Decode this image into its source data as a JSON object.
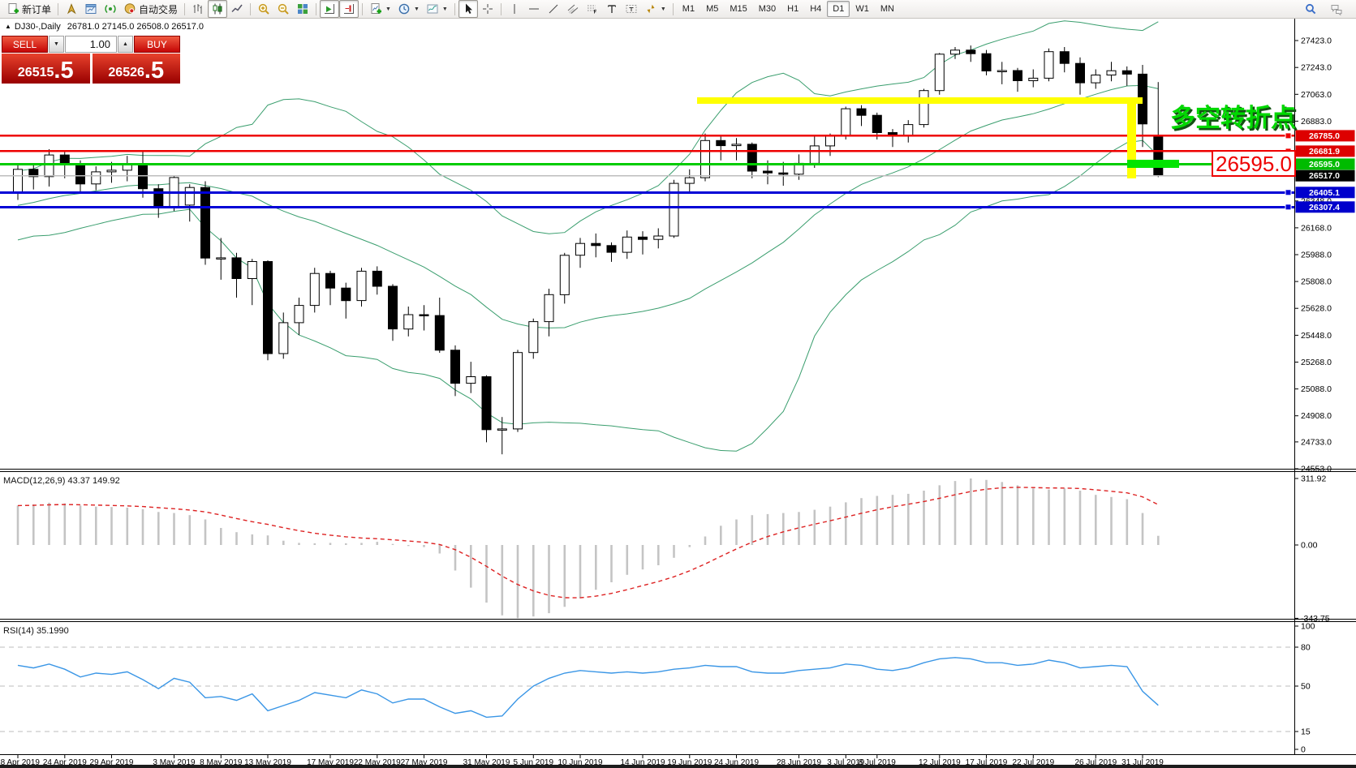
{
  "toolbar": {
    "groups": [
      [
        {
          "icon": "new-order-icon",
          "label": "新订单"
        }
      ],
      [
        {
          "icon": "gold-cursor-icon"
        },
        {
          "icon": "new-chart-icon"
        },
        {
          "icon": "signal-icon"
        },
        {
          "icon": "auto-trading-icon",
          "label": "自动交易"
        }
      ],
      [
        {
          "icon": "bar-chart-icon"
        },
        {
          "icon": "candle-chart-icon",
          "pressed": true
        },
        {
          "icon": "line-chart-icon"
        }
      ],
      [
        {
          "icon": "zoom-in-icon"
        },
        {
          "icon": "zoom-out-icon"
        },
        {
          "icon": "tile-windows-icon"
        }
      ],
      [
        {
          "icon": "auto-scroll-icon",
          "pressed": true
        },
        {
          "icon": "chart-shift-icon",
          "pressed": true
        }
      ],
      [
        {
          "icon": "indicators-icon",
          "caret": true
        },
        {
          "icon": "periods-icon",
          "caret": true
        },
        {
          "icon": "templates-icon",
          "caret": true
        }
      ],
      [
        {
          "icon": "cursor-icon",
          "pressed": true
        },
        {
          "icon": "crosshair-icon"
        }
      ],
      [
        {
          "icon": "vline-icon"
        },
        {
          "icon": "hline-icon"
        },
        {
          "icon": "trendline-icon"
        },
        {
          "icon": "channel-icon"
        },
        {
          "icon": "fibo-icon"
        },
        {
          "icon": "text-icon"
        },
        {
          "icon": "label-icon"
        },
        {
          "icon": "arrows-icon",
          "caret": true
        }
      ]
    ],
    "timeframes": [
      "M1",
      "M5",
      "M15",
      "M30",
      "H1",
      "H4",
      "D1",
      "W1",
      "MN"
    ],
    "active_timeframe": "D1",
    "right_icons": [
      "search-icon",
      "chat-icon"
    ]
  },
  "chart_header": {
    "symbol_marker": "▲",
    "symbol_title": "DJ30-,Daily",
    "ohlc_text": "26781.0 27145.0 26508.0 26517.0"
  },
  "trade_panel": {
    "sell_label": "SELL",
    "buy_label": "BUY",
    "volume_value": "1.00",
    "spin_down": "▼",
    "spin_up": "▲",
    "sell_price_int": "26515",
    "sell_price_frac": ".5",
    "buy_price_int": "26526",
    "buy_price_frac": ".5"
  },
  "price_lines": [
    {
      "price": 26785.0,
      "label": "26785.0",
      "color": "#ee0000",
      "width": 2.4,
      "badge": "#dd0000"
    },
    {
      "price": 26681.9,
      "label": "26681.9",
      "color": "#ee0000",
      "width": 2.4,
      "badge": "#dd0000"
    },
    {
      "price": 26595.0,
      "label": "26595.0",
      "color": "#00cc00",
      "width": 3,
      "badge": "#00bb00"
    },
    {
      "price": 26517.0,
      "label": "26517.0",
      "color": "#bdbdbd",
      "width": 1.4,
      "badge": "#000000"
    },
    {
      "price": 26405.1,
      "label": "26405.1",
      "color": "#0000d6",
      "width": 3,
      "badge": "#0000cc"
    },
    {
      "price": 26307.4,
      "label": "26307.4",
      "color": "#0000d6",
      "width": 3,
      "badge": "#0000cc"
    }
  ],
  "annotations": {
    "pivot_text": "多空转折点",
    "pivot_color": "#00d800",
    "pivot_shadow": "#145214",
    "price_box_text": "26595.0",
    "price_box_color": "#ee0000",
    "yellow_color": "#ffff00",
    "yellow_line": {
      "price": 27021,
      "from_index": 43.5,
      "to_index": 72
    },
    "yellow_drop": {
      "index": 71.3,
      "from_price": 27021,
      "to_price": 26497
    },
    "green_bar": {
      "price": 26595,
      "from_index": 71,
      "to_index": 74.3,
      "color": "#00e400"
    }
  },
  "chart_data": {
    "type": "candlestick",
    "symbol": "DJ30-",
    "period": "Daily",
    "last_bar": {
      "open": 26781.0,
      "high": 27145.0,
      "low": 26508.0,
      "close": 26517.0
    },
    "y_ticks": [
      27423.0,
      27243.0,
      27063.0,
      26883.0,
      26348.0,
      26168.0,
      25988.0,
      25808.0,
      25628.0,
      25448.0,
      25268.0,
      25088.0,
      24908.0,
      24733.0,
      24553.0
    ],
    "x_labels": [
      {
        "i": 0,
        "t": "18 Apr 2019"
      },
      {
        "i": 3,
        "t": "24 Apr 2019"
      },
      {
        "i": 6,
        "t": "29 Apr 2019"
      },
      {
        "i": 10,
        "t": "3 May 2019"
      },
      {
        "i": 13,
        "t": "8 May 2019"
      },
      {
        "i": 16,
        "t": "13 May 2019"
      },
      {
        "i": 20,
        "t": "17 May 2019"
      },
      {
        "i": 23,
        "t": "22 May 2019"
      },
      {
        "i": 26,
        "t": "27 May 2019"
      },
      {
        "i": 30,
        "t": "31 May 2019"
      },
      {
        "i": 33,
        "t": "5 Jun 2019"
      },
      {
        "i": 36,
        "t": "10 Jun 2019"
      },
      {
        "i": 40,
        "t": "14 Jun 2019"
      },
      {
        "i": 43,
        "t": "19 Jun 2019"
      },
      {
        "i": 46,
        "t": "24 Jun 2019"
      },
      {
        "i": 50,
        "t": "28 Jun 2019"
      },
      {
        "i": 53,
        "t": "3 Jul 2019"
      },
      {
        "i": 55,
        "t": "8 Jul 2019"
      },
      {
        "i": 59,
        "t": "12 Jul 2019"
      },
      {
        "i": 62,
        "t": "17 Jul 2019"
      },
      {
        "i": 65,
        "t": "22 Jul 2019"
      },
      {
        "i": 69,
        "t": "26 Jul 2019"
      },
      {
        "i": 72,
        "t": "31 Jul 2019"
      }
    ],
    "candles": [
      [
        26400,
        26602,
        26355,
        26560
      ],
      [
        26560,
        26595,
        26425,
        26511
      ],
      [
        26511,
        26695,
        26445,
        26656
      ],
      [
        26656,
        26680,
        26500,
        26597
      ],
      [
        26597,
        26620,
        26400,
        26462
      ],
      [
        26462,
        26580,
        26420,
        26543
      ],
      [
        26543,
        26610,
        26470,
        26554
      ],
      [
        26554,
        26650,
        26480,
        26593
      ],
      [
        26593,
        26689,
        26370,
        26430
      ],
      [
        26430,
        26460,
        26235,
        26308
      ],
      [
        26308,
        26520,
        26280,
        26505
      ],
      [
        26320,
        26460,
        26210,
        26438
      ],
      [
        26438,
        26480,
        25920,
        25965
      ],
      [
        25965,
        26100,
        25820,
        25967
      ],
      [
        25967,
        26000,
        25700,
        25828
      ],
      [
        25828,
        25960,
        25650,
        25942
      ],
      [
        25942,
        25950,
        25280,
        25325
      ],
      [
        25325,
        25600,
        25290,
        25532
      ],
      [
        25532,
        25700,
        25450,
        25648
      ],
      [
        25648,
        25900,
        25600,
        25862
      ],
      [
        25862,
        25880,
        25650,
        25764
      ],
      [
        25764,
        25800,
        25560,
        25680
      ],
      [
        25680,
        25900,
        25640,
        25877
      ],
      [
        25877,
        25910,
        25720,
        25776
      ],
      [
        25776,
        25790,
        25410,
        25490
      ],
      [
        25490,
        25640,
        25440,
        25586
      ],
      [
        25586,
        25650,
        25480,
        25580
      ],
      [
        25580,
        25700,
        25330,
        25348
      ],
      [
        25348,
        25380,
        25040,
        25126
      ],
      [
        25126,
        25270,
        25060,
        25170
      ],
      [
        25170,
        25180,
        24730,
        24815
      ],
      [
        24815,
        24900,
        24650,
        24820
      ],
      [
        24820,
        25350,
        24800,
        25332
      ],
      [
        25332,
        25560,
        25290,
        25539
      ],
      [
        25539,
        25760,
        25440,
        25720
      ],
      [
        25720,
        26000,
        25660,
        25984
      ],
      [
        25984,
        26100,
        25900,
        26063
      ],
      [
        26063,
        26130,
        25970,
        26049
      ],
      [
        26049,
        26070,
        25940,
        26004
      ],
      [
        26004,
        26150,
        25960,
        26106
      ],
      [
        26106,
        26145,
        25990,
        26090
      ],
      [
        26090,
        26165,
        26030,
        26113
      ],
      [
        26113,
        26490,
        26100,
        26466
      ],
      [
        26466,
        26560,
        26400,
        26504
      ],
      [
        26504,
        26800,
        26480,
        26753
      ],
      [
        26753,
        26790,
        26620,
        26719
      ],
      [
        26719,
        26770,
        26620,
        26728
      ],
      [
        26728,
        26740,
        26500,
        26548
      ],
      [
        26548,
        26620,
        26460,
        26536
      ],
      [
        26536,
        26610,
        26450,
        26527
      ],
      [
        26527,
        26660,
        26490,
        26600
      ],
      [
        26600,
        26780,
        26570,
        26717
      ],
      [
        26717,
        26800,
        26650,
        26786
      ],
      [
        26786,
        26980,
        26760,
        26966
      ],
      [
        26966,
        26990,
        26850,
        26922
      ],
      [
        26922,
        26940,
        26760,
        26806
      ],
      [
        26806,
        26830,
        26710,
        26783
      ],
      [
        26783,
        26890,
        26740,
        26860
      ],
      [
        26860,
        27100,
        26840,
        27088
      ],
      [
        27088,
        27340,
        27060,
        27332
      ],
      [
        27332,
        27380,
        27300,
        27359
      ],
      [
        27359,
        27390,
        27280,
        27335
      ],
      [
        27335,
        27360,
        27190,
        27219
      ],
      [
        27219,
        27280,
        27130,
        27222
      ],
      [
        27222,
        27240,
        27080,
        27154
      ],
      [
        27154,
        27230,
        27110,
        27171
      ],
      [
        27171,
        27370,
        27150,
        27349
      ],
      [
        27349,
        27380,
        27210,
        27270
      ],
      [
        27270,
        27310,
        27060,
        27140
      ],
      [
        27140,
        27230,
        27100,
        27192
      ],
      [
        27192,
        27280,
        27150,
        27221
      ],
      [
        27221,
        27250,
        27120,
        27198
      ],
      [
        27198,
        27260,
        26710,
        26864
      ],
      [
        26781,
        27145,
        26508,
        26517
      ]
    ],
    "bollinger": {
      "period": 20,
      "deviation": 2,
      "color": "#3a9e6e",
      "preroll_closes": [
        26110,
        26140,
        26170,
        26190,
        26210,
        26230,
        26260,
        26280,
        26300,
        26320,
        26340,
        26350,
        26370,
        26390,
        26400,
        26420,
        26430,
        26440,
        26450
      ]
    },
    "macd": {
      "label": "MACD(12,26,9) 43.37 149.92",
      "hist_color": "#c4c4c4",
      "signal_color": "#dd2222",
      "y_ticks": [
        311.92,
        0,
        -343.75
      ],
      "values": [
        185,
        190,
        198,
        195,
        185,
        180,
        178,
        175,
        168,
        155,
        150,
        140,
        120,
        80,
        60,
        50,
        45,
        20,
        10,
        8,
        10,
        8,
        10,
        15,
        5,
        -5,
        -10,
        -40,
        -120,
        -200,
        -270,
        -330,
        -343,
        -335,
        -320,
        -290,
        -250,
        -210,
        -175,
        -140,
        -115,
        -95,
        -60,
        -10,
        40,
        90,
        120,
        140,
        145,
        150,
        155,
        165,
        180,
        200,
        220,
        230,
        235,
        240,
        255,
        280,
        300,
        312,
        305,
        295,
        280,
        265,
        260,
        265,
        255,
        235,
        225,
        215,
        150,
        43
      ]
    },
    "rsi": {
      "label": "RSI(14) 35.1990",
      "color": "#3a96e6",
      "levels": [
        80,
        50,
        15
      ],
      "y_ticks": [
        100,
        80,
        50,
        15,
        0
      ],
      "values": [
        66,
        64,
        67,
        63,
        57,
        60,
        59,
        61,
        55,
        48,
        56,
        53,
        41,
        42,
        39,
        44,
        31,
        35,
        39,
        45,
        43,
        41,
        47,
        44,
        37,
        40,
        40,
        34,
        29,
        31,
        26,
        27,
        40,
        50,
        56,
        60,
        62,
        61,
        60,
        61,
        60,
        61,
        63,
        64,
        66,
        65,
        65,
        61,
        60,
        60,
        62,
        63,
        64,
        67,
        66,
        63,
        62,
        64,
        68,
        71,
        72,
        71,
        68,
        68,
        66,
        67,
        70,
        68,
        64,
        65,
        66,
        65,
        46,
        35.2
      ]
    }
  }
}
